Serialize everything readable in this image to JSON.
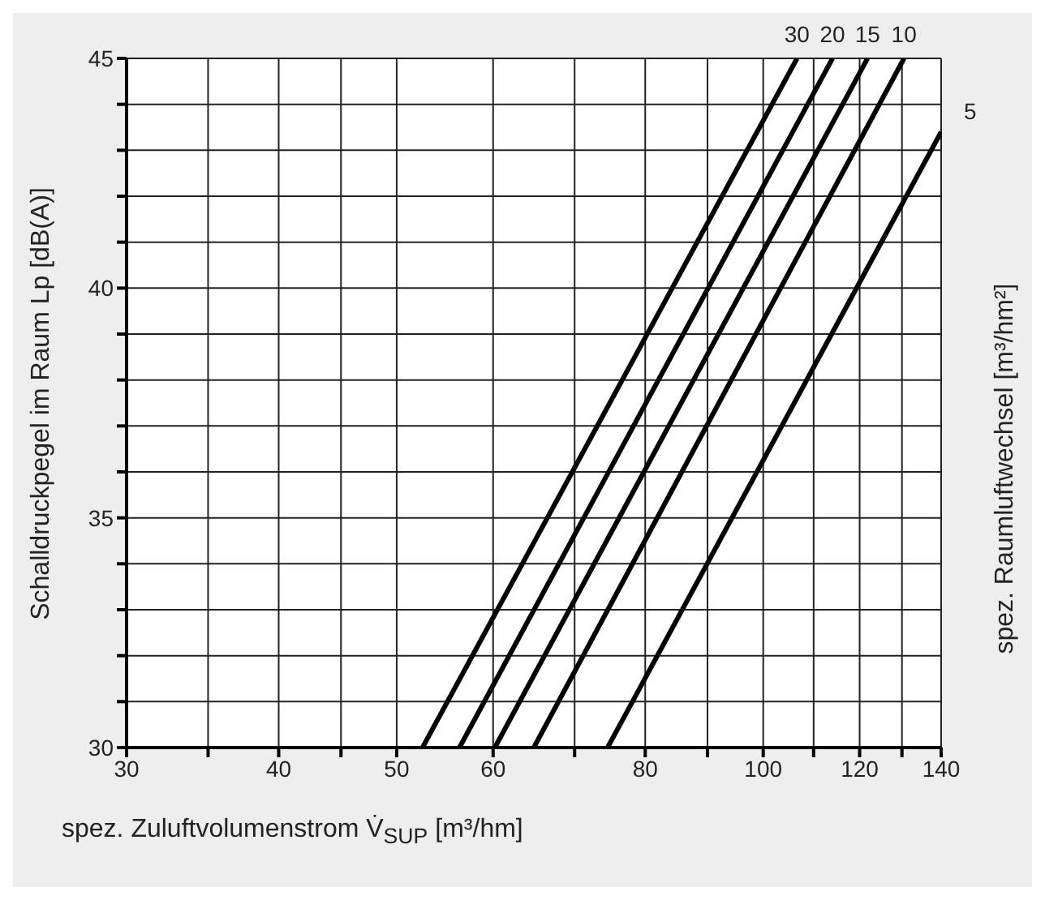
{
  "chart_data": {
    "type": "line",
    "xlabel": "spez. Zuluftvolumenstrom  V̇$_{SUP}$ [m³/hm]",
    "ylabel": "Schalldruckpegel im Raum  Lp [dB(A)]",
    "y2label": "spez. Raumluftwechsel [m³/hm²]",
    "log": "x",
    "xlim": [
      30,
      140
    ],
    "ylim": [
      30,
      45
    ],
    "xticks": [
      30,
      {
        "value": 35,
        "label": null
      },
      40,
      {
        "value": 45,
        "label": null
      },
      50,
      60,
      {
        "value": 70,
        "label": null
      },
      80,
      {
        "value": 90,
        "label": null
      },
      100,
      {
        "value": 110,
        "label": null
      },
      120,
      {
        "value": 130,
        "label": null
      },
      140
    ],
    "yticks": [
      30,
      {
        "value": 31,
        "label": null
      },
      {
        "value": 32,
        "label": null
      },
      {
        "value": 33,
        "label": null
      },
      {
        "value": 34,
        "label": null
      },
      35,
      {
        "value": 36,
        "label": null
      },
      {
        "value": 37,
        "label": null
      },
      {
        "value": 38,
        "label": null
      },
      {
        "value": 39,
        "label": null
      },
      40,
      {
        "value": 41,
        "label": null
      },
      {
        "value": 42,
        "label": null
      },
      {
        "value": 43,
        "label": null
      },
      {
        "value": 44,
        "label": null
      },
      45
    ],
    "grid": true,
    "marker": "none",
    "line_style": "solid",
    "series": [
      {
        "name": "30",
        "color": "#000000",
        "x": [
          52.5,
          106.6
        ],
        "values": [
          30,
          45
        ]
      },
      {
        "name": "20",
        "color": "#000000",
        "x": [
          56.3,
          114
        ],
        "values": [
          30,
          45
        ]
      },
      {
        "name": "15",
        "color": "#000000",
        "x": [
          60.2,
          121.8
        ],
        "values": [
          30,
          45
        ]
      },
      {
        "name": "10",
        "color": "#000000",
        "x": [
          64.8,
          130.5
        ],
        "values": [
          30,
          45
        ]
      },
      {
        "name": "5",
        "color": "#000000",
        "x": [
          74.5,
          140
        ],
        "values": [
          30,
          43.4
        ]
      }
    ]
  }
}
